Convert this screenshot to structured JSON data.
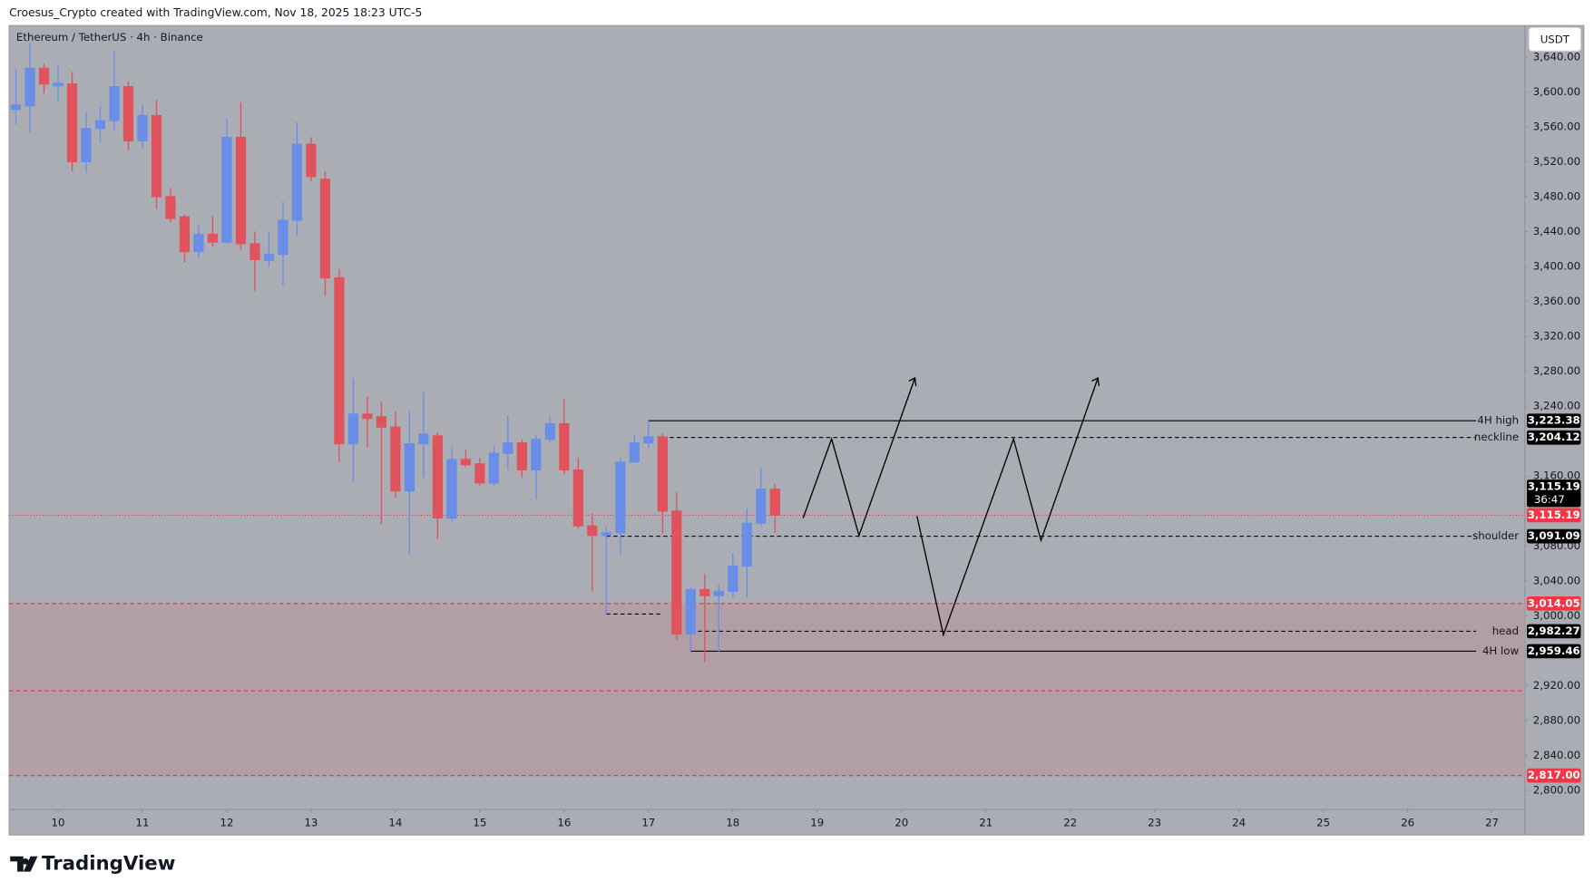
{
  "header": {
    "credit": "Croesus_Crypto created with TradingView.com, Nov 18, 2025 18:23 UTC-5",
    "logo": "TradingView"
  },
  "chart_data": {
    "type": "candlestick",
    "title": "Ethereum / TetherUS · 4h · Binance",
    "currency": "USDT",
    "x": [
      9.5,
      9.667,
      9.833,
      10,
      10.167,
      10.333,
      10.5,
      10.667,
      10.833,
      11,
      11.167,
      11.333,
      11.5,
      11.667,
      11.833,
      12,
      12.167,
      12.333,
      12.5,
      12.667,
      12.833,
      13,
      13.167,
      13.333,
      13.5,
      13.667,
      13.833,
      14,
      14.167,
      14.333,
      14.5,
      14.667,
      14.833,
      15,
      15.167,
      15.333,
      15.5,
      15.667,
      15.833,
      16,
      16.167,
      16.333,
      16.5,
      16.667,
      16.833,
      17,
      17.167,
      17.333,
      17.5,
      17.667,
      17.833,
      18,
      18.167,
      18.333,
      18.5
    ],
    "open": [
      3580,
      3584,
      3627,
      3607,
      3609,
      3520,
      3558,
      3567,
      3606,
      3544,
      3573,
      3480,
      3457,
      3417,
      3437,
      3428,
      3548,
      3426,
      3407,
      3414,
      3453,
      3540,
      3500,
      3387,
      3197,
      3231,
      3228,
      3216,
      3143,
      3197,
      3206,
      3112,
      3179,
      3174,
      3152,
      3186,
      3198,
      3167,
      3202,
      3220,
      3167,
      3103,
      3092,
      3095,
      3176,
      3198,
      3205,
      3120,
      2979,
      3030,
      3023,
      3028,
      3057,
      3106,
      3145
    ],
    "high": [
      3626,
      3656,
      3632,
      3630,
      3623,
      3577,
      3584,
      3647,
      3612,
      3586,
      3591,
      3490,
      3460,
      3447,
      3458,
      3570,
      3588,
      3440,
      3440,
      3474,
      3565,
      3548,
      3509,
      3397,
      3272,
      3251,
      3245,
      3234,
      3234,
      3256,
      3210,
      3193,
      3190,
      3181,
      3195,
      3230,
      3202,
      3207,
      3228,
      3249,
      3181,
      3117,
      3102,
      3181,
      3207,
      3223.38,
      3209,
      3142,
      3033,
      3048,
      3036,
      3072,
      3123,
      3170,
      3151
    ],
    "low": [
      3563,
      3553,
      3598,
      3588,
      3509,
      3507,
      3542,
      3556,
      3533,
      3536,
      3466,
      3451,
      3405,
      3409,
      3423,
      3426,
      3419,
      3372,
      3400,
      3379,
      3435,
      3498,
      3367,
      3176,
      3153,
      3193,
      3105,
      3135,
      3070,
      3158,
      3088,
      3109,
      3170,
      3149,
      3149,
      3167,
      3158,
      3133,
      3198,
      3162,
      3100,
      3028,
      3002,
      3070,
      3179,
      3192,
      3094,
      2972,
      2959.46,
      2947,
      2958,
      3021,
      3021,
      3102,
      3095
    ],
    "close": [
      3585,
      3627,
      3609,
      3610,
      3520,
      3558,
      3567,
      3606,
      3544,
      3573,
      3480,
      3455,
      3417,
      3437,
      3428,
      3548,
      3426,
      3408,
      3414,
      3453,
      3540,
      3503,
      3387,
      3197,
      3231,
      3226,
      3216,
      3143,
      3197,
      3208,
      3112,
      3179,
      3173,
      3152,
      3186,
      3198,
      3167,
      3202,
      3220,
      3167,
      3103,
      3092,
      3095,
      3176,
      3198,
      3205,
      3120,
      2979,
      3030,
      3023,
      3028,
      3057,
      3106,
      3145,
      3115.19
    ],
    "up_color": "#6a8de8",
    "down_color": "#e0525c",
    "xlim": [
      9.42,
      27.39
    ],
    "xticks": [
      10,
      11,
      12,
      13,
      14,
      15,
      16,
      17,
      18,
      19,
      20,
      21,
      22,
      23,
      24,
      25,
      26,
      27
    ],
    "ylim": [
      2778,
      3676
    ],
    "yticks": [
      {
        "value": 2800,
        "label": "2,800.00"
      },
      {
        "value": 2840,
        "label": "2,840.00"
      },
      {
        "value": 2880,
        "label": "2,880.00"
      },
      {
        "value": 2920,
        "label": "2,920.00"
      },
      {
        "value": 3000,
        "label": "3,000.00"
      },
      {
        "value": 3040,
        "label": "3,040.00"
      },
      {
        "value": 3080,
        "label": "3,080.00"
      },
      {
        "value": 3160,
        "label": "3,160.00"
      },
      {
        "value": 3240,
        "label": "3,240.00"
      },
      {
        "value": 3280,
        "label": "3,280.00"
      },
      {
        "value": 3320,
        "label": "3,320.00"
      },
      {
        "value": 3360,
        "label": "3,360.00"
      },
      {
        "value": 3400,
        "label": "3,400.00"
      },
      {
        "value": 3440,
        "label": "3,440.00"
      },
      {
        "value": 3480,
        "label": "3,480.00"
      },
      {
        "value": 3520,
        "label": "3,520.00"
      },
      {
        "value": 3560,
        "label": "3,560.00"
      },
      {
        "value": 3600,
        "label": "3,600.00"
      },
      {
        "value": 3640,
        "label": "3,640.00"
      }
    ],
    "grid": false,
    "levels": [
      {
        "name": "4H high",
        "value": 3223.38,
        "label": "3,223.38",
        "from": 17,
        "style": "solid"
      },
      {
        "name": "neckline",
        "value": 3204.12,
        "label": "3,204.12",
        "from": 17.167,
        "style": "dashed"
      },
      {
        "name": "shoulder",
        "value": 3091.09,
        "label": "3,091.09",
        "from": 16.5,
        "style": "dashed"
      },
      {
        "name": "head",
        "value": 2982.27,
        "label": "2,982.27",
        "from": 17.5,
        "style": "dashed"
      },
      {
        "name": "4H low",
        "value": 2959.46,
        "label": "2,959.46",
        "from": 17.5,
        "style": "solid"
      }
    ],
    "segments": [
      {
        "value": 3002,
        "from": 16.5,
        "to": 17.167
      }
    ],
    "zone": {
      "top": 3014.05,
      "top_label": "3,014.05",
      "mid": 2914,
      "bottom": 2817,
      "bottom_label": "2,817.00",
      "color": "#b39ca2",
      "line_color": "#e5323e"
    },
    "last_label": "3,115.19",
    "countdown": "36:47"
  }
}
